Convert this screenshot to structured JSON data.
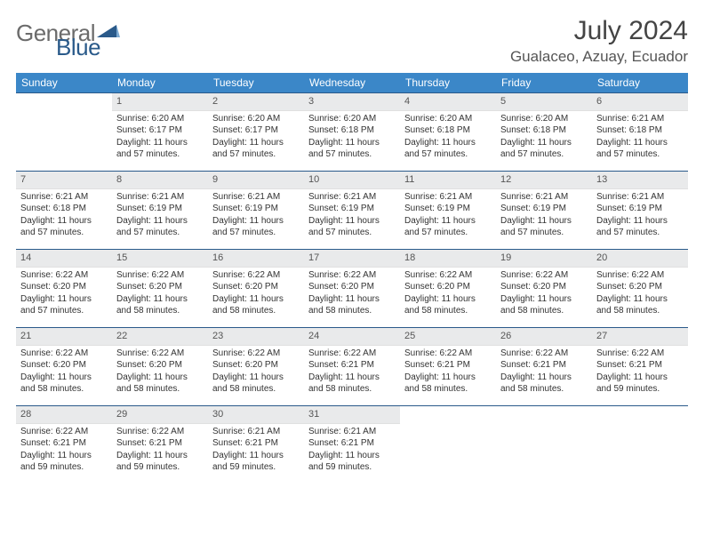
{
  "brand": {
    "text1": "General",
    "text2": "Blue"
  },
  "title": {
    "month_year": "July 2024",
    "location": "Gualaceo, Azuay, Ecuador"
  },
  "colors": {
    "header_bg": "#3b87c8",
    "header_border": "#2a5a8a",
    "daynum_bg": "#e9eaeb",
    "text": "#333333",
    "brand_gray": "#6b6b6b",
    "brand_blue": "#2a5a8a"
  },
  "weekdays": [
    "Sunday",
    "Monday",
    "Tuesday",
    "Wednesday",
    "Thursday",
    "Friday",
    "Saturday"
  ],
  "first_weekday_index": 1,
  "days": [
    {
      "n": 1,
      "sr": "6:20 AM",
      "ss": "6:17 PM",
      "dl": "11 hours and 57 minutes."
    },
    {
      "n": 2,
      "sr": "6:20 AM",
      "ss": "6:17 PM",
      "dl": "11 hours and 57 minutes."
    },
    {
      "n": 3,
      "sr": "6:20 AM",
      "ss": "6:18 PM",
      "dl": "11 hours and 57 minutes."
    },
    {
      "n": 4,
      "sr": "6:20 AM",
      "ss": "6:18 PM",
      "dl": "11 hours and 57 minutes."
    },
    {
      "n": 5,
      "sr": "6:20 AM",
      "ss": "6:18 PM",
      "dl": "11 hours and 57 minutes."
    },
    {
      "n": 6,
      "sr": "6:21 AM",
      "ss": "6:18 PM",
      "dl": "11 hours and 57 minutes."
    },
    {
      "n": 7,
      "sr": "6:21 AM",
      "ss": "6:18 PM",
      "dl": "11 hours and 57 minutes."
    },
    {
      "n": 8,
      "sr": "6:21 AM",
      "ss": "6:19 PM",
      "dl": "11 hours and 57 minutes."
    },
    {
      "n": 9,
      "sr": "6:21 AM",
      "ss": "6:19 PM",
      "dl": "11 hours and 57 minutes."
    },
    {
      "n": 10,
      "sr": "6:21 AM",
      "ss": "6:19 PM",
      "dl": "11 hours and 57 minutes."
    },
    {
      "n": 11,
      "sr": "6:21 AM",
      "ss": "6:19 PM",
      "dl": "11 hours and 57 minutes."
    },
    {
      "n": 12,
      "sr": "6:21 AM",
      "ss": "6:19 PM",
      "dl": "11 hours and 57 minutes."
    },
    {
      "n": 13,
      "sr": "6:21 AM",
      "ss": "6:19 PM",
      "dl": "11 hours and 57 minutes."
    },
    {
      "n": 14,
      "sr": "6:22 AM",
      "ss": "6:20 PM",
      "dl": "11 hours and 57 minutes."
    },
    {
      "n": 15,
      "sr": "6:22 AM",
      "ss": "6:20 PM",
      "dl": "11 hours and 58 minutes."
    },
    {
      "n": 16,
      "sr": "6:22 AM",
      "ss": "6:20 PM",
      "dl": "11 hours and 58 minutes."
    },
    {
      "n": 17,
      "sr": "6:22 AM",
      "ss": "6:20 PM",
      "dl": "11 hours and 58 minutes."
    },
    {
      "n": 18,
      "sr": "6:22 AM",
      "ss": "6:20 PM",
      "dl": "11 hours and 58 minutes."
    },
    {
      "n": 19,
      "sr": "6:22 AM",
      "ss": "6:20 PM",
      "dl": "11 hours and 58 minutes."
    },
    {
      "n": 20,
      "sr": "6:22 AM",
      "ss": "6:20 PM",
      "dl": "11 hours and 58 minutes."
    },
    {
      "n": 21,
      "sr": "6:22 AM",
      "ss": "6:20 PM",
      "dl": "11 hours and 58 minutes."
    },
    {
      "n": 22,
      "sr": "6:22 AM",
      "ss": "6:20 PM",
      "dl": "11 hours and 58 minutes."
    },
    {
      "n": 23,
      "sr": "6:22 AM",
      "ss": "6:20 PM",
      "dl": "11 hours and 58 minutes."
    },
    {
      "n": 24,
      "sr": "6:22 AM",
      "ss": "6:21 PM",
      "dl": "11 hours and 58 minutes."
    },
    {
      "n": 25,
      "sr": "6:22 AM",
      "ss": "6:21 PM",
      "dl": "11 hours and 58 minutes."
    },
    {
      "n": 26,
      "sr": "6:22 AM",
      "ss": "6:21 PM",
      "dl": "11 hours and 58 minutes."
    },
    {
      "n": 27,
      "sr": "6:22 AM",
      "ss": "6:21 PM",
      "dl": "11 hours and 59 minutes."
    },
    {
      "n": 28,
      "sr": "6:22 AM",
      "ss": "6:21 PM",
      "dl": "11 hours and 59 minutes."
    },
    {
      "n": 29,
      "sr": "6:22 AM",
      "ss": "6:21 PM",
      "dl": "11 hours and 59 minutes."
    },
    {
      "n": 30,
      "sr": "6:21 AM",
      "ss": "6:21 PM",
      "dl": "11 hours and 59 minutes."
    },
    {
      "n": 31,
      "sr": "6:21 AM",
      "ss": "6:21 PM",
      "dl": "11 hours and 59 minutes."
    }
  ],
  "labels": {
    "sunrise": "Sunrise:",
    "sunset": "Sunset:",
    "daylight": "Daylight:"
  }
}
